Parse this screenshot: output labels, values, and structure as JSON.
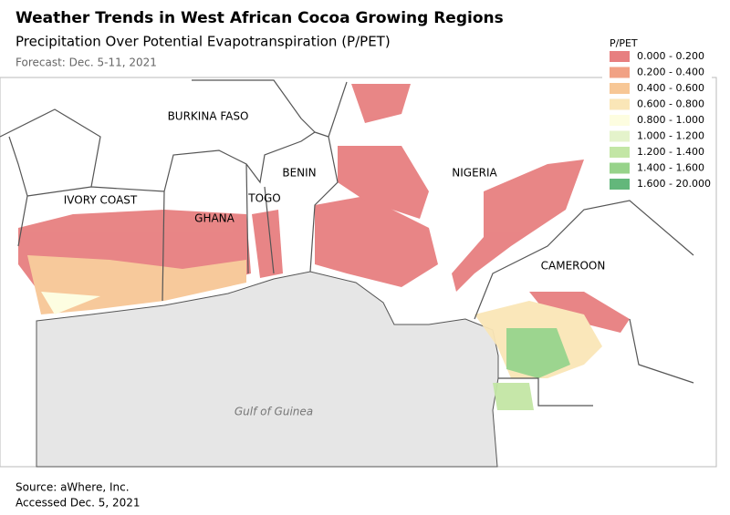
{
  "header": {
    "title": "Weather Trends in West African Cocoa Growing Regions",
    "subtitle": "Precipitation Over Potential Evapotranspiration (P/PET)",
    "forecast": "Forecast: Dec. 5-11, 2021"
  },
  "legend": {
    "title": "P/PET",
    "items": [
      {
        "label": "0.000 - 0.200",
        "color": "#e77f80"
      },
      {
        "label": "0.200 - 0.400",
        "color": "#f1a184"
      },
      {
        "label": "0.400 - 0.600",
        "color": "#f7c796"
      },
      {
        "label": "0.600 - 0.800",
        "color": "#fae6b7"
      },
      {
        "label": "0.800 - 1.000",
        "color": "#fdfde0"
      },
      {
        "label": "1.000 - 1.200",
        "color": "#e4f3cb"
      },
      {
        "label": "1.200 - 1.400",
        "color": "#c3e6a5"
      },
      {
        "label": "1.400 - 1.600",
        "color": "#97d38a"
      },
      {
        "label": "1.600 - 20.000",
        "color": "#63b77b"
      }
    ]
  },
  "map": {
    "labels": [
      "BURKINA FASO",
      "IVORY COAST",
      "GHANA",
      "TOGO",
      "BENIN",
      "NIGERIA",
      "CAMEROON"
    ],
    "sea": "Gulf of Guinea"
  },
  "footer": {
    "source": "Source: aWhere, Inc.",
    "accessed": "Accessed Dec. 5, 2021"
  }
}
